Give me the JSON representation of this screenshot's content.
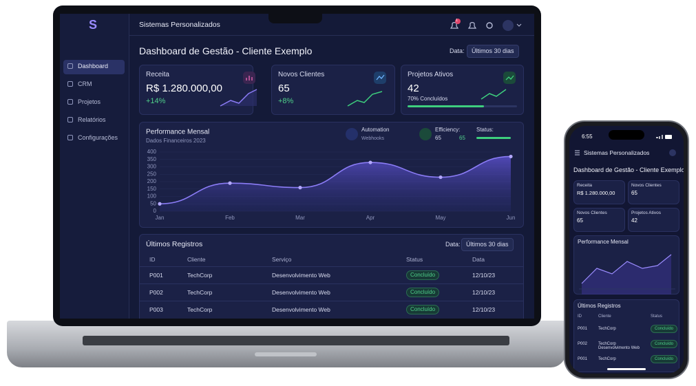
{
  "laptop": {
    "brand": "S",
    "app_name": "Sistemas Personalizados",
    "badge": "1",
    "nav": [
      "Dashboard",
      "CRM",
      "Projetos",
      "Relatórios",
      "Configurações"
    ],
    "title": "Dashboard de Gestão - Cliente Exemplo",
    "date_label": "Data:",
    "date_range": "Últimos 30 dias",
    "cards": [
      {
        "label": "Receita",
        "value": "R$ 1.280.000,00",
        "change": "+14%"
      },
      {
        "label": "Novos Clientes",
        "value": "65",
        "change": "+8%"
      },
      {
        "label": "Projetos Ativos",
        "value": "42",
        "note": "70% Concluídos"
      }
    ],
    "chart": {
      "type": "line",
      "title": "Performance Mensal",
      "subtitle": "Dados Financeiros 2023",
      "widgets": [
        {
          "label": "Automation",
          "sub": "Webhooks"
        },
        {
          "label": "Efficiency:",
          "sub": "65",
          "sub2": "65"
        },
        {
          "label": "Status:"
        }
      ],
      "categories": [
        "Jan",
        "Feb",
        "Mar",
        "Apr",
        "May",
        "Jun"
      ],
      "values": [
        50,
        190,
        160,
        330,
        230,
        370
      ],
      "color": "#8b7cf6",
      "ylim": [
        0,
        400
      ],
      "yticks": [
        0,
        50,
        100,
        150,
        200,
        250,
        300,
        350,
        400
      ]
    },
    "table": {
      "title": "Últimos Registros",
      "date_label": "Data:",
      "date_range": "Últimos 30 dias",
      "headers": [
        "ID",
        "Cliente",
        "Serviço",
        "Status",
        "Data"
      ],
      "rows": [
        [
          "P001",
          "TechCorp",
          "Desenvolvimento Web",
          "Concluído",
          "12/10/23"
        ],
        [
          "P002",
          "TechCorp",
          "Desenvolvimento Web",
          "Concluído",
          "12/10/23"
        ],
        [
          "P003",
          "TechCorp",
          "Desenvolvimento Web",
          "Concluído",
          "12/10/23"
        ]
      ]
    }
  },
  "phone": {
    "time": "6:55",
    "app_name": "Sistemas Personalizados",
    "title": "Dashboard de Gestão - Cliente Exemplo",
    "cards": [
      {
        "label": "Receita",
        "value": "R$ 1.280.000,00"
      },
      {
        "label": "Novos Clientes",
        "value": "65"
      },
      {
        "label": "Novos Clientes",
        "value": "65"
      },
      {
        "label": "Projetos Ativos",
        "value": "42"
      }
    ],
    "chart_title": "Performance Mensal",
    "table": {
      "title": "Últimos Registros",
      "headers": [
        "ID",
        "Cliente",
        "Status"
      ],
      "rows": [
        [
          "P001",
          "TechCorp",
          "Concluído"
        ],
        [
          "P002",
          "TechCorp Desenvolvimento Web",
          "Concluído"
        ],
        [
          "P001",
          "TechCorp",
          "Concluído"
        ]
      ]
    }
  }
}
